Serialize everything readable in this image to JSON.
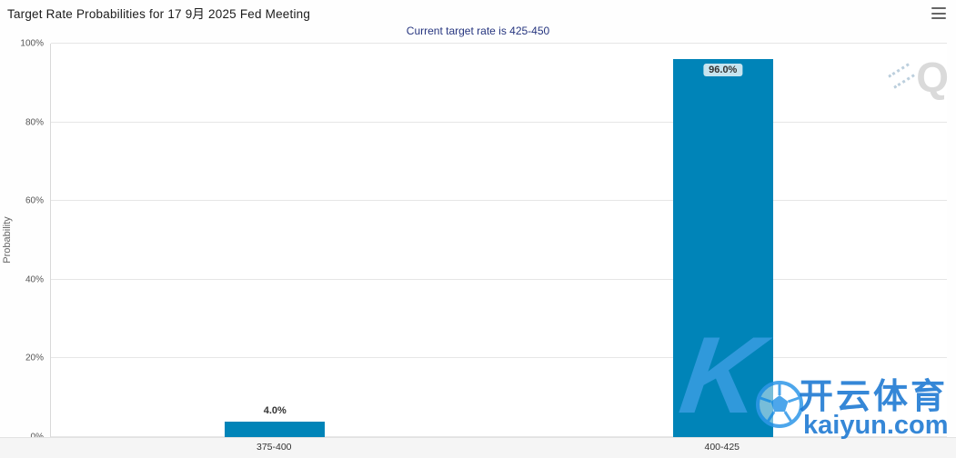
{
  "header": {
    "title": "Target Rate Probabilities for 17 9月 2025 Fed Meeting",
    "subtitle": "Current target rate is 425-450"
  },
  "chart_data": {
    "type": "bar",
    "title": "Target Rate Probabilities for 17 9月 2025 Fed Meeting",
    "subtitle": "Current target rate is 425-450",
    "categories": [
      "375-400",
      "400-425"
    ],
    "values": [
      4.0,
      96.0
    ],
    "value_labels": [
      "4.0%",
      "96.0%"
    ],
    "xlabel": "",
    "ylabel": "Probability",
    "ylim": [
      0,
      100
    ],
    "yticks": [
      "0%",
      "20%",
      "40%",
      "60%",
      "80%",
      "100%"
    ],
    "grid": true,
    "legend": "none",
    "bar_color": "#0084b8"
  },
  "watermarks": {
    "logo_text": "Q",
    "k_glyph": "K",
    "overlay_title": "开云体育",
    "overlay_domain": "kaiyun.com"
  },
  "colors": {
    "bar": "#0084b8",
    "subtitle_navy": "#26357f",
    "watermark_blue": "#1976d2",
    "grid": "#e6e6e6"
  }
}
